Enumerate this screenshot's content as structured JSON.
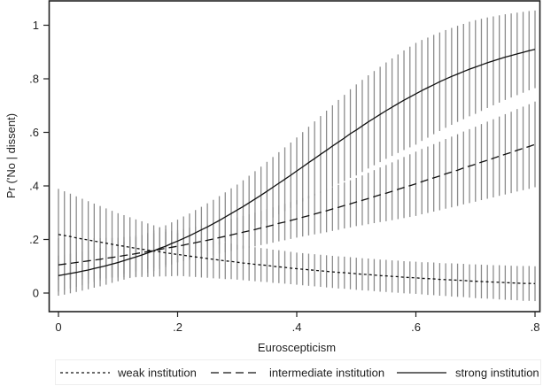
{
  "chart_data": {
    "type": "line",
    "xlabel": "Euroscepticism",
    "ylabel": "Pr ('No | dissent)",
    "xlim": [
      -0.015,
      0.809
    ],
    "ylim": [
      -0.07,
      1.09
    ],
    "xticks": [
      0,
      0.2,
      0.4,
      0.6,
      0.8
    ],
    "xtick_labels": [
      "0",
      ".2",
      ".4",
      ".6",
      ".8"
    ],
    "yticks": [
      0,
      0.2,
      0.4,
      0.6,
      0.8,
      1
    ],
    "ytick_labels": [
      "0",
      ".2",
      ".4",
      ".6",
      ".8",
      "1"
    ],
    "grid": false,
    "legend_position": "bottom",
    "colors": {
      "lines": "#111111",
      "error_bars": "#8c8c8c",
      "frame": "#222222"
    },
    "x_step": 0.01,
    "series": [
      {
        "name": "weak institution",
        "line_style": "short-dash",
        "estimate": [
          0.219,
          0.215,
          0.211,
          0.206,
          0.202,
          0.198,
          0.194,
          0.19,
          0.186,
          0.182,
          0.178,
          0.175,
          0.171,
          0.167,
          0.164,
          0.16,
          0.157,
          0.154,
          0.15,
          0.147,
          0.144,
          0.141,
          0.138,
          0.135,
          0.132,
          0.129,
          0.126,
          0.123,
          0.12,
          0.118,
          0.115,
          0.112,
          0.11,
          0.107,
          0.105,
          0.103,
          0.1,
          0.098,
          0.096,
          0.093,
          0.091,
          0.089,
          0.087,
          0.085,
          0.083,
          0.081,
          0.079,
          0.077,
          0.076,
          0.074,
          0.072,
          0.07,
          0.069,
          0.067,
          0.065,
          0.064,
          0.062,
          0.061,
          0.059,
          0.058,
          0.057,
          0.055,
          0.054,
          0.053,
          0.051,
          0.05,
          0.049,
          0.048,
          0.047,
          0.045,
          0.044,
          0.043,
          0.042,
          0.041,
          0.04,
          0.039,
          0.038,
          0.037,
          0.036,
          0.036,
          0.035
        ],
        "lower": [
          0.049,
          0.05,
          0.051,
          0.051,
          0.052,
          0.053,
          0.054,
          0.055,
          0.056,
          0.057,
          0.058,
          0.059,
          0.059,
          0.059,
          0.06,
          0.06,
          0.061,
          0.062,
          0.062,
          0.063,
          0.064,
          0.063,
          0.061,
          0.06,
          0.058,
          0.057,
          0.055,
          0.054,
          0.052,
          0.052,
          0.05,
          0.048,
          0.046,
          0.044,
          0.042,
          0.041,
          0.038,
          0.037,
          0.035,
          0.033,
          0.031,
          0.029,
          0.027,
          0.025,
          0.023,
          0.021,
          0.019,
          0.017,
          0.016,
          0.014,
          0.012,
          0.01,
          0.009,
          0.007,
          0.005,
          0.004,
          0.002,
          0.001,
          -0.001,
          -0.002,
          -0.003,
          -0.005,
          -0.007,
          -0.008,
          -0.01,
          -0.011,
          -0.013,
          -0.014,
          -0.015,
          -0.017,
          -0.019,
          -0.02,
          -0.021,
          -0.022,
          -0.024,
          -0.025,
          -0.026,
          -0.027,
          -0.029,
          -0.029,
          -0.03
        ],
        "upper": [
          0.389,
          0.38,
          0.371,
          0.361,
          0.352,
          0.343,
          0.334,
          0.325,
          0.316,
          0.307,
          0.298,
          0.291,
          0.283,
          0.275,
          0.268,
          0.26,
          0.253,
          0.246,
          0.238,
          0.231,
          0.224,
          0.22,
          0.215,
          0.211,
          0.206,
          0.202,
          0.197,
          0.193,
          0.188,
          0.185,
          0.18,
          0.177,
          0.174,
          0.171,
          0.168,
          0.166,
          0.162,
          0.16,
          0.157,
          0.154,
          0.151,
          0.149,
          0.147,
          0.145,
          0.143,
          0.141,
          0.139,
          0.137,
          0.136,
          0.134,
          0.132,
          0.13,
          0.129,
          0.127,
          0.125,
          0.124,
          0.122,
          0.121,
          0.119,
          0.118,
          0.117,
          0.115,
          0.115,
          0.114,
          0.112,
          0.111,
          0.111,
          0.11,
          0.109,
          0.107,
          0.107,
          0.106,
          0.105,
          0.104,
          0.104,
          0.103,
          0.102,
          0.101,
          0.101,
          0.101,
          0.1
        ]
      },
      {
        "name": "intermediate institution",
        "line_style": "long-dash",
        "estimate": [
          0.105,
          0.108,
          0.111,
          0.114,
          0.117,
          0.12,
          0.123,
          0.126,
          0.13,
          0.133,
          0.136,
          0.14,
          0.143,
          0.147,
          0.151,
          0.155,
          0.159,
          0.163,
          0.167,
          0.171,
          0.175,
          0.179,
          0.184,
          0.188,
          0.193,
          0.197,
          0.202,
          0.207,
          0.212,
          0.217,
          0.222,
          0.227,
          0.232,
          0.237,
          0.243,
          0.248,
          0.254,
          0.26,
          0.265,
          0.271,
          0.277,
          0.283,
          0.289,
          0.295,
          0.301,
          0.307,
          0.314,
          0.32,
          0.327,
          0.333,
          0.34,
          0.346,
          0.353,
          0.36,
          0.367,
          0.373,
          0.38,
          0.387,
          0.394,
          0.401,
          0.408,
          0.416,
          0.423,
          0.43,
          0.437,
          0.445,
          0.452,
          0.459,
          0.467,
          0.474,
          0.481,
          0.489,
          0.496,
          0.503,
          0.511,
          0.518,
          0.525,
          0.533,
          0.54,
          0.547,
          0.555
        ],
        "lower": [
          0.005,
          0.011,
          0.017,
          0.023,
          0.029,
          0.035,
          0.041,
          0.047,
          0.054,
          0.06,
          0.066,
          0.071,
          0.075,
          0.08,
          0.085,
          0.09,
          0.095,
          0.1,
          0.105,
          0.11,
          0.115,
          0.119,
          0.124,
          0.128,
          0.133,
          0.137,
          0.142,
          0.147,
          0.152,
          0.157,
          0.162,
          0.166,
          0.17,
          0.174,
          0.179,
          0.183,
          0.188,
          0.193,
          0.197,
          0.202,
          0.207,
          0.211,
          0.215,
          0.219,
          0.223,
          0.227,
          0.232,
          0.236,
          0.241,
          0.245,
          0.25,
          0.253,
          0.257,
          0.261,
          0.265,
          0.268,
          0.272,
          0.276,
          0.28,
          0.284,
          0.288,
          0.294,
          0.299,
          0.304,
          0.309,
          0.315,
          0.32,
          0.325,
          0.331,
          0.336,
          0.341,
          0.347,
          0.352,
          0.357,
          0.363,
          0.368,
          0.373,
          0.379,
          0.384,
          0.389,
          0.395
        ],
        "upper": [
          0.205,
          0.205,
          0.205,
          0.205,
          0.205,
          0.205,
          0.205,
          0.205,
          0.206,
          0.206,
          0.206,
          0.209,
          0.211,
          0.214,
          0.217,
          0.22,
          0.223,
          0.226,
          0.229,
          0.232,
          0.235,
          0.239,
          0.244,
          0.248,
          0.253,
          0.257,
          0.262,
          0.267,
          0.272,
          0.277,
          0.282,
          0.288,
          0.294,
          0.3,
          0.307,
          0.313,
          0.32,
          0.327,
          0.333,
          0.34,
          0.347,
          0.355,
          0.363,
          0.371,
          0.379,
          0.387,
          0.396,
          0.404,
          0.413,
          0.421,
          0.43,
          0.439,
          0.449,
          0.459,
          0.469,
          0.478,
          0.488,
          0.498,
          0.508,
          0.518,
          0.528,
          0.538,
          0.547,
          0.556,
          0.565,
          0.575,
          0.584,
          0.593,
          0.603,
          0.612,
          0.621,
          0.631,
          0.64,
          0.649,
          0.659,
          0.668,
          0.677,
          0.687,
          0.696,
          0.705,
          0.715
        ]
      },
      {
        "name": "strong institution",
        "line_style": "solid",
        "estimate": [
          0.065,
          0.069,
          0.073,
          0.077,
          0.082,
          0.086,
          0.092,
          0.097,
          0.102,
          0.108,
          0.114,
          0.121,
          0.128,
          0.135,
          0.142,
          0.15,
          0.158,
          0.167,
          0.175,
          0.185,
          0.194,
          0.204,
          0.214,
          0.225,
          0.236,
          0.247,
          0.259,
          0.271,
          0.284,
          0.297,
          0.31,
          0.323,
          0.337,
          0.351,
          0.365,
          0.38,
          0.395,
          0.41,
          0.425,
          0.44,
          0.456,
          0.471,
          0.487,
          0.502,
          0.518,
          0.533,
          0.549,
          0.564,
          0.579,
          0.595,
          0.609,
          0.624,
          0.639,
          0.653,
          0.667,
          0.681,
          0.694,
          0.707,
          0.72,
          0.732,
          0.744,
          0.756,
          0.767,
          0.778,
          0.789,
          0.799,
          0.809,
          0.818,
          0.827,
          0.836,
          0.844,
          0.852,
          0.86,
          0.867,
          0.874,
          0.881,
          0.887,
          0.893,
          0.899,
          0.905,
          0.91
        ],
        "lower": [
          -0.01,
          -0.006,
          -0.001,
          0.004,
          0.009,
          0.014,
          0.02,
          0.025,
          0.031,
          0.038,
          0.044,
          0.05,
          0.056,
          0.062,
          0.068,
          0.075,
          0.082,
          0.09,
          0.097,
          0.106,
          0.114,
          0.122,
          0.131,
          0.141,
          0.15,
          0.16,
          0.17,
          0.181,
          0.192,
          0.204,
          0.215,
          0.225,
          0.236,
          0.247,
          0.258,
          0.27,
          0.282,
          0.294,
          0.306,
          0.318,
          0.331,
          0.342,
          0.353,
          0.364,
          0.375,
          0.386,
          0.397,
          0.408,
          0.418,
          0.43,
          0.439,
          0.452,
          0.465,
          0.477,
          0.489,
          0.501,
          0.512,
          0.523,
          0.534,
          0.544,
          0.554,
          0.568,
          0.58,
          0.593,
          0.605,
          0.617,
          0.628,
          0.639,
          0.649,
          0.66,
          0.669,
          0.68,
          0.691,
          0.701,
          0.711,
          0.721,
          0.73,
          0.739,
          0.748,
          0.757,
          0.765
        ],
        "upper": [
          0.14,
          0.143,
          0.147,
          0.151,
          0.155,
          0.159,
          0.164,
          0.168,
          0.173,
          0.179,
          0.184,
          0.192,
          0.2,
          0.208,
          0.216,
          0.225,
          0.234,
          0.244,
          0.253,
          0.264,
          0.274,
          0.286,
          0.297,
          0.31,
          0.322,
          0.335,
          0.348,
          0.362,
          0.376,
          0.391,
          0.405,
          0.421,
          0.438,
          0.455,
          0.472,
          0.49,
          0.508,
          0.526,
          0.544,
          0.562,
          0.581,
          0.601,
          0.621,
          0.641,
          0.661,
          0.681,
          0.701,
          0.721,
          0.74,
          0.761,
          0.779,
          0.796,
          0.813,
          0.829,
          0.845,
          0.861,
          0.876,
          0.891,
          0.906,
          0.92,
          0.934,
          0.945,
          0.954,
          0.964,
          0.973,
          0.982,
          0.99,
          0.998,
          1.005,
          1.013,
          1.019,
          1.024,
          1.029,
          1.033,
          1.037,
          1.041,
          1.044,
          1.047,
          1.05,
          1.053,
          1.055
        ]
      }
    ]
  }
}
